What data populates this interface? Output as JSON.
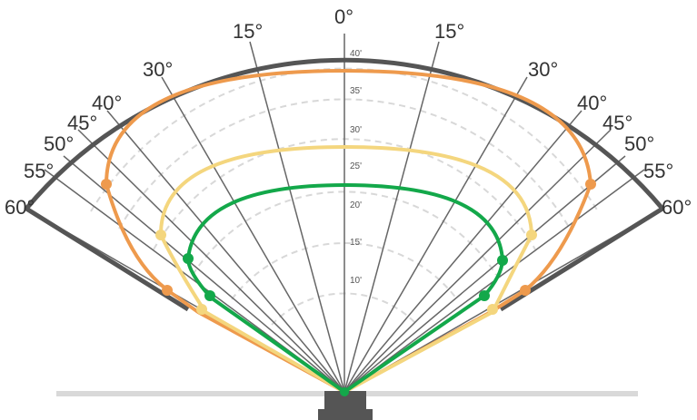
{
  "diagram": {
    "angle_labels_left": [
      "0°",
      "15°",
      "30°",
      "40°",
      "45°",
      "50°",
      "55°",
      "60°"
    ],
    "angle_labels_right": [
      "15°",
      "30°",
      "40°",
      "45°",
      "50°",
      "55°",
      "60°"
    ],
    "distance_labels": [
      "10'",
      "15'",
      "20'",
      "25'",
      "30'",
      "35'",
      "40'"
    ],
    "colors": {
      "frame": "#555555",
      "spoke": "#666666",
      "grid_dashed": "#d8d8d8",
      "ground": "#d9d9d9",
      "sensor": "#555555",
      "curve_outer": "#ee9a4d",
      "curve_middle": "#f4d67e",
      "curve_inner": "#13a84a"
    }
  },
  "chart_data": {
    "type": "polar",
    "angles_deg": [
      -60,
      -55,
      -50,
      -45,
      -40,
      -30,
      -15,
      0,
      15,
      30,
      40,
      45,
      50,
      55,
      60
    ],
    "radial_ticks": [
      10,
      15,
      20,
      25,
      30,
      35,
      40
    ],
    "max_range": 47,
    "series": [
      {
        "color": "orange",
        "max_range": 40,
        "marker_points": [
          {
            "angle": -52,
            "range": 38
          },
          {
            "angle": -58,
            "range": 22
          },
          {
            "angle": 52,
            "range": 38
          },
          {
            "angle": 58,
            "range": 22
          }
        ]
      },
      {
        "color": "light-yellow",
        "max_range": 32,
        "marker_points": [
          {
            "angle": -50,
            "range": 28
          },
          {
            "angle": -60,
            "range": 18
          },
          {
            "angle": 50,
            "range": 28
          },
          {
            "angle": 60,
            "range": 18
          }
        ]
      },
      {
        "color": "green",
        "max_range": 27,
        "marker_points": [
          {
            "angle": -50,
            "range": 22
          },
          {
            "angle": -55,
            "range": 17
          },
          {
            "angle": 50,
            "range": 22
          },
          {
            "angle": 55,
            "range": 17
          }
        ]
      }
    ]
  }
}
